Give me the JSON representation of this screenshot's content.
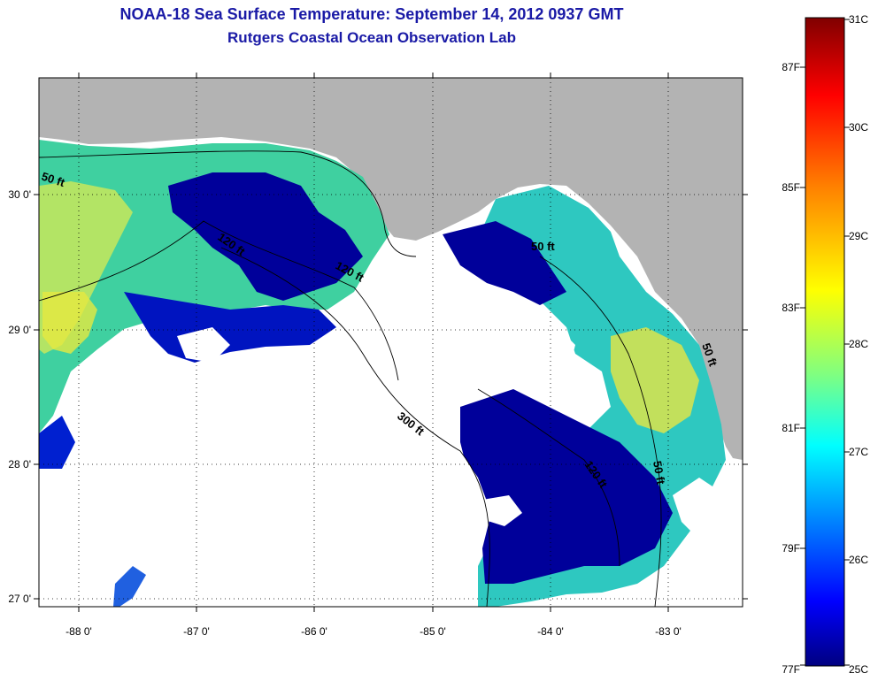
{
  "title": "NOAA-18 Sea Surface Temperature:  September 14, 2012 0937 GMT",
  "subtitle": "Rutgers Coastal Ocean Observation Lab",
  "map": {
    "lat_ticks": [
      "30 0'",
      "29 0'",
      "28 0'",
      "27 0'"
    ],
    "lon_ticks": [
      "-88 0'",
      "-87 0'",
      "-86 0'",
      "-85 0'",
      "-84 0'",
      "-83 0'"
    ],
    "contour_labels": [
      "50 ft",
      "120 ft",
      "120 ft",
      "50 ft",
      "300 ft",
      "120 ft",
      "50 ft",
      "50 ft"
    ]
  },
  "colorbar": {
    "celsius": [
      "31C",
      "30C",
      "29C",
      "28C",
      "27C",
      "26C",
      "25C"
    ],
    "fahrenheit": [
      "87F",
      "85F",
      "83F",
      "81F",
      "79F",
      "77F"
    ],
    "stops": [
      "#800000",
      "#ff0000",
      "#ff8000",
      "#ffff00",
      "#80ff80",
      "#00ffff",
      "#0080ff",
      "#0000ff",
      "#000080"
    ]
  },
  "colors": {
    "land": "#b3b3b3",
    "cloud": "#ffffff",
    "cold_water": "#00009a",
    "title": "#1a1aa6"
  }
}
